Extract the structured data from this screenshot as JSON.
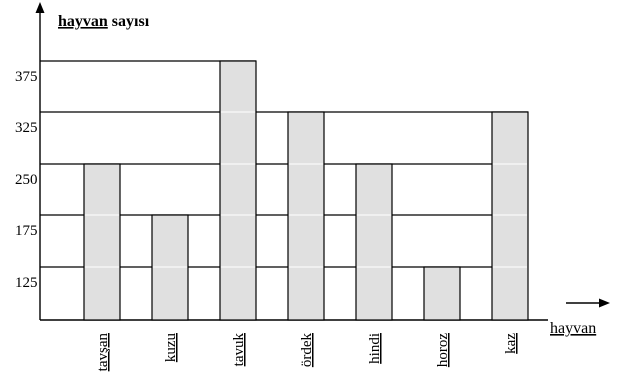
{
  "chart_data": {
    "type": "bar",
    "ylabel_part1": "hayvan",
    "ylabel_part2": " sayısı",
    "xlabel": "hayvan",
    "categories": [
      "tavşan",
      "kuzu",
      "tavuk",
      "ördek",
      "hindi",
      "horoz",
      "kaz"
    ],
    "values": [
      250,
      175,
      375,
      325,
      250,
      125,
      325
    ],
    "yticks": [
      125,
      175,
      250,
      325,
      375
    ],
    "ylim_bottom": 50,
    "grid": "step-lines-at-bar-heights",
    "colors": {
      "bar_fill": "#e0e0e0",
      "bar_stroke": "#000000",
      "line": "#000000",
      "inner_line": "#ffffff"
    }
  }
}
